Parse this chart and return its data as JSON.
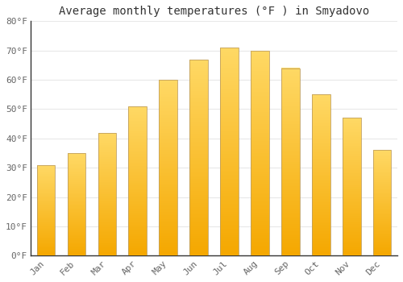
{
  "title": "Average monthly temperatures (°F ) in Smyadovo",
  "months": [
    "Jan",
    "Feb",
    "Mar",
    "Apr",
    "May",
    "Jun",
    "Jul",
    "Aug",
    "Sep",
    "Oct",
    "Nov",
    "Dec"
  ],
  "values": [
    31,
    35,
    42,
    51,
    60,
    67,
    71,
    70,
    64,
    55,
    47,
    36
  ],
  "ylim": [
    0,
    80
  ],
  "yticks": [
    0,
    10,
    20,
    30,
    40,
    50,
    60,
    70,
    80
  ],
  "ytick_labels": [
    "0°F",
    "10°F",
    "20°F",
    "30°F",
    "40°F",
    "50°F",
    "60°F",
    "70°F",
    "80°F"
  ],
  "background_color": "#ffffff",
  "grid_color": "#e8e8e8",
  "title_fontsize": 10,
  "tick_fontsize": 8,
  "bar_color_bottom": "#F5A800",
  "bar_color_top": "#FFD966",
  "bar_edge_color": "#C0A060",
  "bar_width": 0.6
}
